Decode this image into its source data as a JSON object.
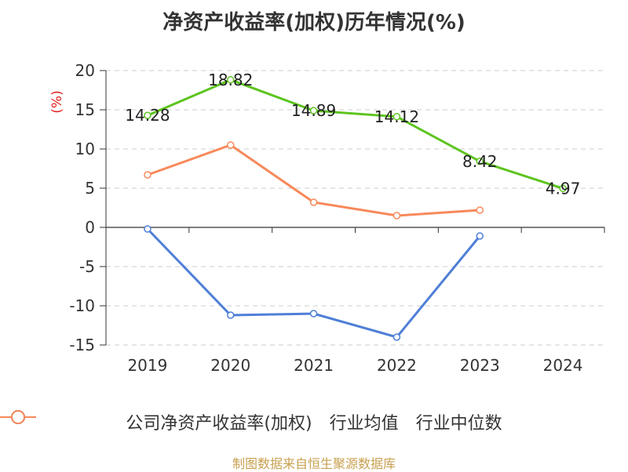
{
  "chart_data": {
    "type": "line",
    "title": "净资产收益率(加权)历年情况(%)",
    "ylabel": "(%)",
    "xlabel": "",
    "categories": [
      "2019",
      "2020",
      "2021",
      "2022",
      "2023",
      "2024"
    ],
    "ylim": [
      -15,
      20
    ],
    "yticks": [
      20,
      15,
      10,
      5,
      0,
      -5,
      -10,
      -15
    ],
    "grid": true,
    "legend_position": "bottom",
    "series": [
      {
        "name": "公司净资产收益率(加权)",
        "color": "#5dc41e",
        "values": [
          14.28,
          18.82,
          14.89,
          14.12,
          8.42,
          4.97
        ],
        "show_labels": true
      },
      {
        "name": "行业均值",
        "color": "#4f7fd6",
        "values": [
          -0.2,
          -11.2,
          -11.0,
          -14.0,
          -1.1,
          null
        ],
        "show_labels": false
      },
      {
        "name": "行业中位数",
        "color": "#f7895a",
        "values": [
          6.7,
          10.5,
          3.2,
          1.5,
          2.2,
          null
        ],
        "show_labels": false
      }
    ]
  },
  "source": "制图数据来自恒生聚源数据库"
}
